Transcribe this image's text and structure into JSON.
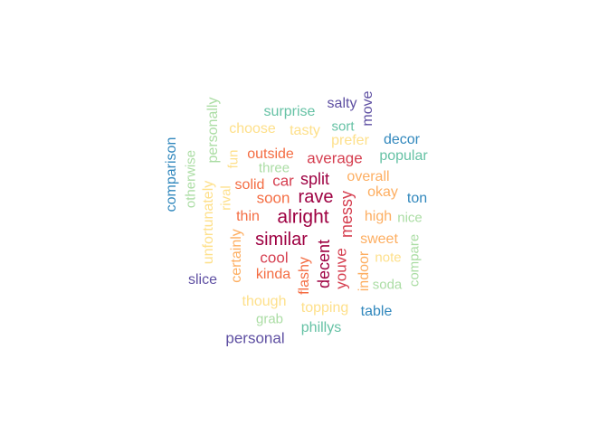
{
  "palette": {
    "dark_red": "#9e0142",
    "red": "#d53e4f",
    "orange": "#f46d43",
    "light_orange": "#fdae61",
    "yellow": "#fee08b",
    "light_green": "#abdda4",
    "green": "#66c2a5",
    "blue": "#3288bd",
    "purple": "#5e4fa2"
  },
  "words": [
    {
      "text": "alright",
      "color": "#9e0142"
    },
    {
      "text": "rave",
      "color": "#9e0142"
    },
    {
      "text": "similar",
      "color": "#9e0142"
    },
    {
      "text": "split",
      "color": "#9e0142"
    },
    {
      "text": "decent",
      "color": "#9e0142"
    },
    {
      "text": "average",
      "color": "#d53e4f"
    },
    {
      "text": "car",
      "color": "#d53e4f"
    },
    {
      "text": "cool",
      "color": "#d53e4f"
    },
    {
      "text": "messy",
      "color": "#d53e4f"
    },
    {
      "text": "youve",
      "color": "#d53e4f"
    },
    {
      "text": "soon",
      "color": "#f46d43"
    },
    {
      "text": "outside",
      "color": "#f46d43"
    },
    {
      "text": "thin",
      "color": "#f46d43"
    },
    {
      "text": "kinda",
      "color": "#f46d43"
    },
    {
      "text": "flashy",
      "color": "#f46d43"
    },
    {
      "text": "solid",
      "color": "#f46d43"
    },
    {
      "text": "sweet",
      "color": "#fdae61"
    },
    {
      "text": "high",
      "color": "#fdae61"
    },
    {
      "text": "overall",
      "color": "#fdae61"
    },
    {
      "text": "okay",
      "color": "#fdae61"
    },
    {
      "text": "certainly",
      "color": "#fdae61"
    },
    {
      "text": "indoor",
      "color": "#fdae61"
    },
    {
      "text": "prefer",
      "color": "#fee08b"
    },
    {
      "text": "tasty",
      "color": "#fee08b"
    },
    {
      "text": "choose",
      "color": "#fee08b"
    },
    {
      "text": "fun",
      "color": "#fee08b"
    },
    {
      "text": "rival",
      "color": "#fee08b"
    },
    {
      "text": "unfortunately",
      "color": "#fee08b"
    },
    {
      "text": "though",
      "color": "#fee08b"
    },
    {
      "text": "topping",
      "color": "#fee08b"
    },
    {
      "text": "note",
      "color": "#fee08b"
    },
    {
      "text": "three",
      "color": "#abdda4"
    },
    {
      "text": "personally",
      "color": "#abdda4"
    },
    {
      "text": "otherwise",
      "color": "#abdda4"
    },
    {
      "text": "grab",
      "color": "#abdda4"
    },
    {
      "text": "soda",
      "color": "#abdda4"
    },
    {
      "text": "compare",
      "color": "#abdda4"
    },
    {
      "text": "nice",
      "color": "#abdda4"
    },
    {
      "text": "surprise",
      "color": "#66c2a5"
    },
    {
      "text": "sort",
      "color": "#66c2a5"
    },
    {
      "text": "popular",
      "color": "#66c2a5"
    },
    {
      "text": "phillys",
      "color": "#66c2a5"
    },
    {
      "text": "decor",
      "color": "#3288bd"
    },
    {
      "text": "ton",
      "color": "#3288bd"
    },
    {
      "text": "comparison",
      "color": "#3288bd"
    },
    {
      "text": "table",
      "color": "#3288bd"
    },
    {
      "text": "salty",
      "color": "#5e4fa2"
    },
    {
      "text": "move",
      "color": "#5e4fa2"
    },
    {
      "text": "slice",
      "color": "#5e4fa2"
    },
    {
      "text": "personal",
      "color": "#5e4fa2"
    }
  ]
}
